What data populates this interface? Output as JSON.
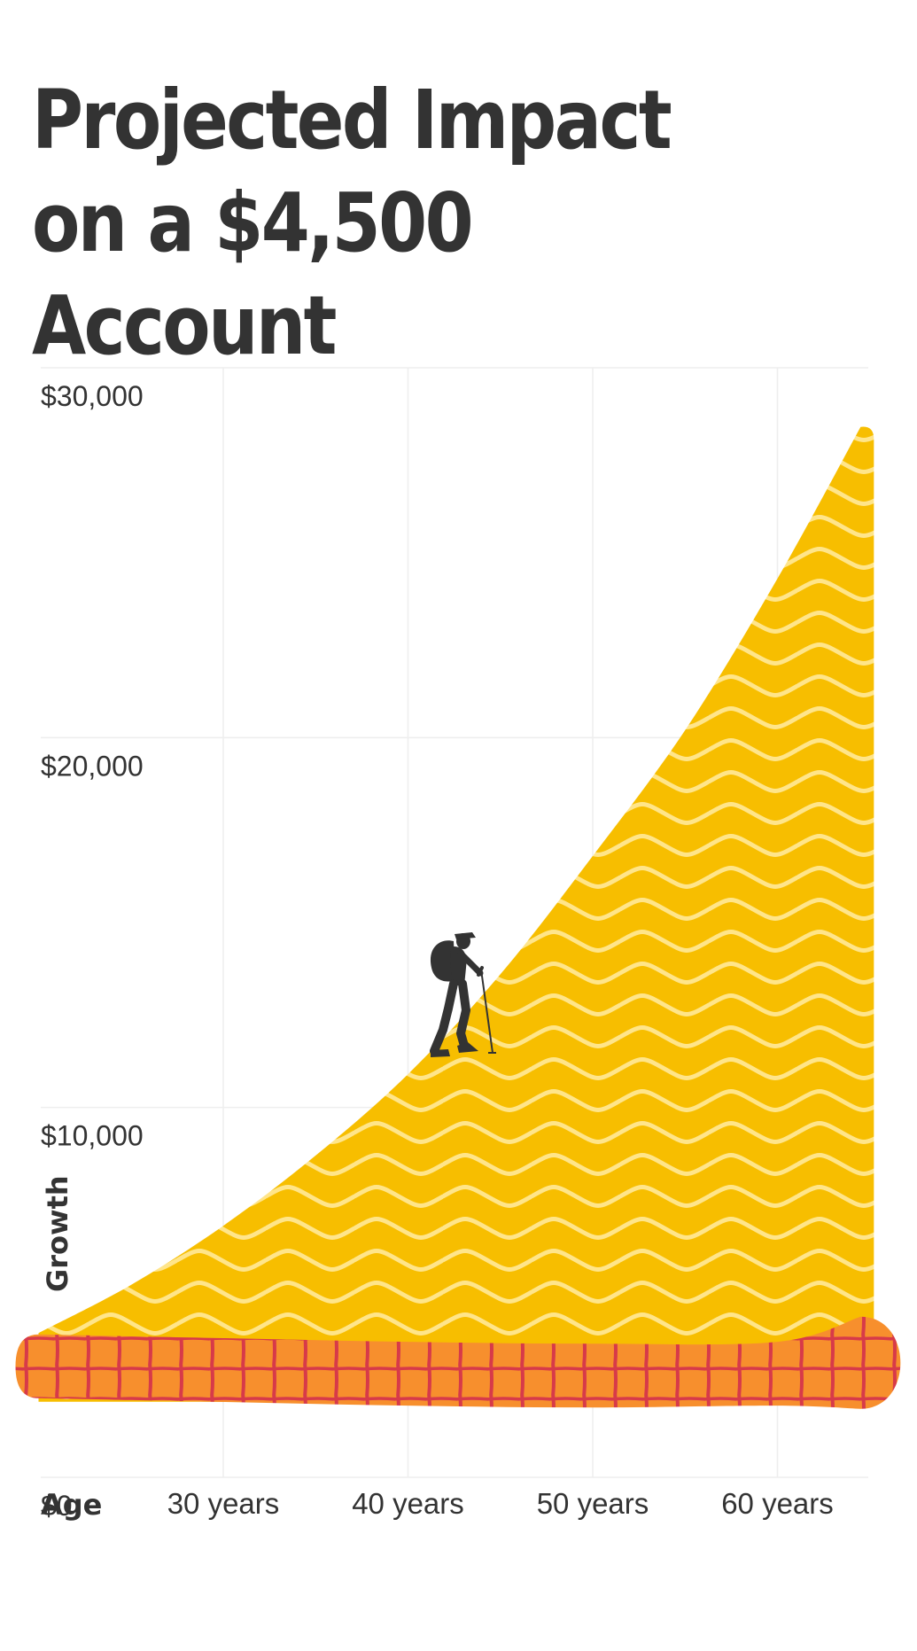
{
  "title": {
    "line1": "Projected Impact",
    "line2": "on a $4,500 Account"
  },
  "chart_data": {
    "type": "area",
    "title": "Projected Impact on a $4,500 Account",
    "xlabel": "Age",
    "ylabel": "Growth",
    "y_ticks": [
      "$0",
      "$10,000",
      "$20,000",
      "$30,000"
    ],
    "y_tick_values": [
      0,
      10000,
      20000,
      30000
    ],
    "x_ticks": [
      "30 years",
      "40 years",
      "50 years",
      "60 years"
    ],
    "x_tick_values": [
      30,
      40,
      50,
      60
    ],
    "xlim": [
      20,
      65
    ],
    "ylim": [
      0,
      30000
    ],
    "grid": true,
    "series": [
      {
        "color": "#F7BE00",
        "pattern": "wavy-lines",
        "x": [
          20,
          25,
          30,
          35,
          40,
          45,
          50,
          55,
          60,
          64.5
        ],
        "values": [
          3900,
          5200,
          6800,
          8700,
          10900,
          13600,
          16800,
          20200,
          24300,
          28400
        ]
      },
      {
        "color": "#F78F2D",
        "pattern": "grid",
        "x": [
          20,
          30,
          40,
          50,
          60,
          64.5
        ],
        "values": [
          3000,
          2900,
          2800,
          2750,
          2800,
          3000
        ]
      }
    ],
    "colors": {
      "grid": "#EEEEEE",
      "text": "#333333",
      "pattern_line": "#D73A49",
      "wave_line": "#FFE58A"
    }
  }
}
